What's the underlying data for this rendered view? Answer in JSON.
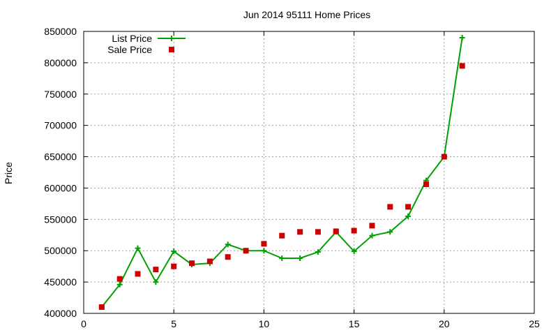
{
  "chart_data": {
    "type": "line",
    "title": "Jun 2014 95111 Home Prices",
    "xlabel": "",
    "ylabel": "Price",
    "xlim": [
      0,
      25
    ],
    "ylim": [
      400000,
      850000
    ],
    "x_ticks": [
      "0",
      "5",
      "10",
      "15",
      "20",
      "25"
    ],
    "y_ticks": [
      "400000",
      "450000",
      "500000",
      "550000",
      "600000",
      "650000",
      "700000",
      "750000",
      "800000",
      "850000"
    ],
    "grid": true,
    "legend_position": "top-left",
    "series": [
      {
        "name": "List Price",
        "style": "line+cross",
        "color": "#00a000",
        "x": [
          1,
          2,
          3,
          4,
          5,
          6,
          7,
          8,
          9,
          10,
          11,
          12,
          13,
          14,
          15,
          16,
          17,
          18,
          19,
          20,
          21
        ],
        "values": [
          410000,
          446000,
          504000,
          450000,
          499000,
          478000,
          480000,
          510000,
          500000,
          500000,
          488000,
          488000,
          498000,
          530000,
          499000,
          524000,
          530000,
          555000,
          612000,
          650000,
          840000
        ]
      },
      {
        "name": "Sale Price",
        "style": "square",
        "color": "#cc0000",
        "x": [
          1,
          2,
          3,
          4,
          5,
          6,
          7,
          8,
          9,
          10,
          11,
          12,
          13,
          14,
          15,
          16,
          17,
          18,
          19,
          20,
          21
        ],
        "values": [
          410000,
          455000,
          463000,
          470000,
          475000,
          480000,
          483000,
          490000,
          500000,
          511000,
          524000,
          530000,
          530000,
          531000,
          532000,
          540000,
          570000,
          570000,
          606000,
          650000,
          795000
        ]
      }
    ]
  }
}
